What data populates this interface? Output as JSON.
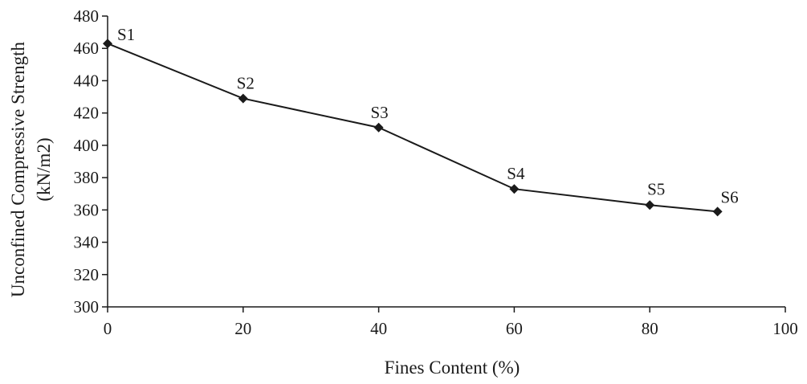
{
  "chart_data": {
    "type": "line",
    "xlabel": "Fines Content (%)",
    "ylabel_lines": [
      "Unconfined Compressive Strength",
      "(kN/m2)"
    ],
    "xlim": [
      0,
      100
    ],
    "ylim": [
      300,
      480
    ],
    "x_ticks": [
      0,
      20,
      40,
      60,
      80,
      100
    ],
    "y_ticks": [
      300,
      320,
      340,
      360,
      380,
      400,
      420,
      440,
      460,
      480
    ],
    "grid": false,
    "legend": "none",
    "colors": {
      "line": "#1a1a1a",
      "marker": "#1a1a1a",
      "axis": "#1a1a1a"
    },
    "marker": "diamond",
    "series": [
      {
        "points": [
          {
            "x": 0,
            "y": 463,
            "label": "S1"
          },
          {
            "x": 20,
            "y": 429,
            "label": "S2"
          },
          {
            "x": 40,
            "y": 411,
            "label": "S3"
          },
          {
            "x": 60,
            "y": 373,
            "label": "S4"
          },
          {
            "x": 80,
            "y": 363,
            "label": "S5"
          },
          {
            "x": 90,
            "y": 359,
            "label": "S6"
          }
        ]
      }
    ]
  }
}
